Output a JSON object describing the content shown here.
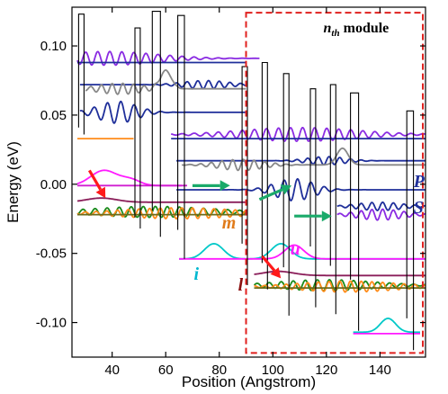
{
  "chart_data": {
    "type": "line",
    "title": "",
    "xlabel": "Position (Angstrom)",
    "ylabel": "Energy (eV)",
    "xlim": [
      25,
      157
    ],
    "ylim": [
      -0.125,
      0.128
    ],
    "xticks": [
      40,
      60,
      80,
      100,
      120,
      140
    ],
    "yticks": [
      0.1,
      0.05,
      0.0,
      -0.05,
      -0.1
    ],
    "ytick_labels": [
      "0.10",
      "0.05",
      "0.00",
      "-0.05",
      "-0.10"
    ],
    "module_box": {
      "label_main": "n",
      "label_sub": "th",
      "label_suffix": " module",
      "x_range": [
        90,
        156
      ],
      "y_range": [
        -0.122,
        0.124
      ]
    },
    "barriers": [
      {
        "x0": 27.5,
        "x1": 29.5,
        "top": 0.123,
        "b0": 0.041,
        "b1": 0.036
      },
      {
        "x0": 48.5,
        "x1": 50.5,
        "top": 0.113,
        "b0": -0.024,
        "b1": -0.032
      },
      {
        "x0": 55,
        "x1": 58,
        "top": 0.125,
        "b0": -0.019,
        "b1": -0.038
      },
      {
        "x0": 64.5,
        "x1": 67,
        "top": 0.122,
        "b0": -0.033,
        "b1": -0.054
      },
      {
        "x0": 88.5,
        "x1": 90.5,
        "top": 0.085,
        "b0": -0.043,
        "b1": -0.073
      },
      {
        "x0": 96,
        "x1": 98,
        "top": 0.088,
        "b0": -0.057,
        "b1": -0.076
      },
      {
        "x0": 104,
        "x1": 106,
        "top": 0.08,
        "b0": -0.06,
        "b1": -0.095
      },
      {
        "x0": 114,
        "x1": 116,
        "top": 0.069,
        "b0": -0.045,
        "b1": -0.089
      },
      {
        "x0": 121.5,
        "x1": 123.5,
        "top": 0.072,
        "b0": -0.059,
        "b1": -0.094
      },
      {
        "x0": 129,
        "x1": 132,
        "top": 0.066,
        "b0": -0.069,
        "b1": -0.106
      },
      {
        "x0": 150,
        "x1": 152.5,
        "top": 0.053,
        "b0": -0.097,
        "b1": -0.12
      }
    ],
    "series": [
      {
        "color": "#8a2be2",
        "base": 0.091,
        "xs": [
          27,
          95
        ],
        "wave": [
          {
            "c": 38,
            "w": 26,
            "a": 0.005,
            "k": 4.5
          }
        ]
      },
      {
        "color": "#1f2f9a",
        "base": 0.088,
        "xs": [
          27,
          90
        ],
        "wave": []
      },
      {
        "color": "#1f2f9a",
        "base": 0.072,
        "xs": [
          28,
          90
        ],
        "wave": [
          {
            "c": 75,
            "w": 12,
            "a": 0.003,
            "k": 4
          }
        ]
      },
      {
        "color": "#888888",
        "base": 0.069,
        "xs": [
          30,
          90
        ],
        "wave": [
          {
            "c": 43,
            "w": 12,
            "a": 0.004,
            "k": 4
          },
          {
            "c": 60,
            "w": 3,
            "a": 0.013,
            "k": 0
          }
        ]
      },
      {
        "color": "#1f2f9a",
        "base": 0.052,
        "xs": [
          28,
          90
        ],
        "wave": [
          {
            "c": 42,
            "w": 10,
            "a": 0.008,
            "k": 5
          }
        ]
      },
      {
        "color": "#8a2be2",
        "base": 0.036,
        "xs": [
          62,
          157
        ],
        "wave": [
          {
            "c": 110,
            "w": 30,
            "a": 0.005,
            "k": 4.5
          }
        ]
      },
      {
        "color": "#1f2f9a",
        "base": 0.033,
        "xs": [
          62,
          157
        ],
        "wave": []
      },
      {
        "color": "#1f2f9a",
        "base": 0.017,
        "xs": [
          64,
          157
        ],
        "wave": [
          {
            "c": 120,
            "w": 10,
            "a": 0.003,
            "k": 4
          }
        ]
      },
      {
        "color": "#888888",
        "base": 0.014,
        "xs": [
          66,
          157
        ],
        "wave": [
          {
            "c": 88,
            "w": 12,
            "a": 0.004,
            "k": 4
          },
          {
            "c": 126,
            "w": 3,
            "a": 0.012,
            "k": 0
          }
        ]
      },
      {
        "color": "#1f2f9a",
        "base": -0.004,
        "xs": [
          64,
          157
        ],
        "wave": [
          {
            "c": 108,
            "w": 10,
            "a": 0.008,
            "k": 5
          }
        ]
      },
      {
        "color": "#ff8c1a",
        "base": 0.033,
        "xs": [
          27,
          48
        ],
        "wave": []
      },
      {
        "color": "#ff1aff",
        "base": -0.001,
        "xs": [
          27,
          66
        ],
        "wave": [
          {
            "c": 37,
            "w": 7,
            "a": 0.011,
            "k": 0
          },
          {
            "c": 47,
            "w": 5,
            "a": 0.004,
            "k": 0
          }
        ]
      },
      {
        "color": "#d11fd1",
        "base": -0.001,
        "xs": [
          27,
          68
        ],
        "wave": []
      },
      {
        "color": "#8b1f5a",
        "base": -0.013,
        "xs": [
          27,
          90
        ],
        "wave": [
          {
            "c": 36,
            "w": 8,
            "a": 0.003,
            "k": 0
          }
        ]
      },
      {
        "color": "#1a8a1a",
        "base": -0.02,
        "xs": [
          27,
          90
        ],
        "wave": [
          {
            "c": 55,
            "w": 30,
            "a": 0.004,
            "k": 4.5
          }
        ]
      },
      {
        "color": "#ff8c1a",
        "base": -0.021,
        "xs": [
          27,
          90
        ],
        "wave": [
          {
            "c": 65,
            "w": 30,
            "a": 0.004,
            "k": 4
          }
        ]
      },
      {
        "color": "#6b6b1a",
        "base": -0.022,
        "xs": [
          27,
          90
        ],
        "wave": []
      },
      {
        "color": "#1f2f9a",
        "base": -0.016,
        "xs": [
          124,
          157
        ],
        "wave": [
          {
            "c": 140,
            "w": 12,
            "a": 0.003,
            "k": 4
          }
        ]
      },
      {
        "color": "#8a2be2",
        "base": -0.022,
        "xs": [
          124,
          157
        ],
        "wave": [
          {
            "c": 140,
            "w": 12,
            "a": 0.004,
            "k": 4
          }
        ]
      },
      {
        "color": "#00c8c8",
        "base": -0.054,
        "xs": [
          65,
          157
        ],
        "wave": [
          {
            "c": 78,
            "w": 5,
            "a": 0.011,
            "k": 0
          },
          {
            "c": 103,
            "w": 5,
            "a": 0.011,
            "k": 0
          }
        ]
      },
      {
        "color": "#ff1aff",
        "base": -0.054,
        "xs": [
          65,
          157
        ],
        "wave": [
          {
            "c": 108,
            "w": 5,
            "a": 0.01,
            "k": 0
          }
        ]
      },
      {
        "color": "#8b1f5a",
        "base": -0.066,
        "xs": [
          93,
          157
        ],
        "wave": [
          {
            "c": 102,
            "w": 8,
            "a": 0.003,
            "k": 0
          }
        ]
      },
      {
        "color": "#1a8a1a",
        "base": -0.073,
        "xs": [
          93,
          157
        ],
        "wave": [
          {
            "c": 120,
            "w": 25,
            "a": 0.004,
            "k": 4.5
          }
        ]
      },
      {
        "color": "#ff8c1a",
        "base": -0.074,
        "xs": [
          93,
          157
        ],
        "wave": [
          {
            "c": 128,
            "w": 25,
            "a": 0.004,
            "k": 4
          }
        ]
      },
      {
        "color": "#6b6b1a",
        "base": -0.075,
        "xs": [
          93,
          157
        ],
        "wave": []
      },
      {
        "color": "#00c8c8",
        "base": -0.107,
        "xs": [
          130,
          155
        ],
        "wave": [
          {
            "c": 143,
            "w": 4,
            "a": 0.01,
            "k": 0
          }
        ]
      },
      {
        "color": "#ff1aff",
        "base": -0.108,
        "xs": [
          130,
          155
        ],
        "wave": []
      }
    ],
    "arrows": [
      {
        "color": "#ff1a1a",
        "from": [
          31.5,
          0.01
        ],
        "to": [
          37.5,
          -0.01
        ]
      },
      {
        "color": "#1aaa6a",
        "from": [
          70,
          -0.001
        ],
        "to": [
          84,
          -0.001
        ]
      },
      {
        "color": "#1aaa6a",
        "from": [
          95,
          -0.011
        ],
        "to": [
          107,
          -0.001
        ]
      },
      {
        "color": "#1aaa6a",
        "from": [
          108,
          -0.023
        ],
        "to": [
          122,
          -0.023
        ]
      },
      {
        "color": "#ff1a1a",
        "from": [
          96,
          -0.052
        ],
        "to": [
          103,
          -0.068
        ]
      }
    ],
    "annotations": [
      {
        "text": "P",
        "x": 152.5,
        "y": -0.002,
        "color": "#1f2f9a"
      },
      {
        "text": "S",
        "x": 152.5,
        "y": -0.021,
        "color": "#1f2f9a"
      },
      {
        "text": "m",
        "x": 81,
        "y": -0.032,
        "color": "#e07b1a"
      },
      {
        "text": "u",
        "x": 106.5,
        "y": -0.051,
        "color": "#ff1aff"
      },
      {
        "text": "i",
        "x": 70.5,
        "y": -0.069,
        "color": "#00b8d0"
      },
      {
        "text": "l",
        "x": 87,
        "y": -0.077,
        "color": "#8b1010"
      }
    ]
  }
}
